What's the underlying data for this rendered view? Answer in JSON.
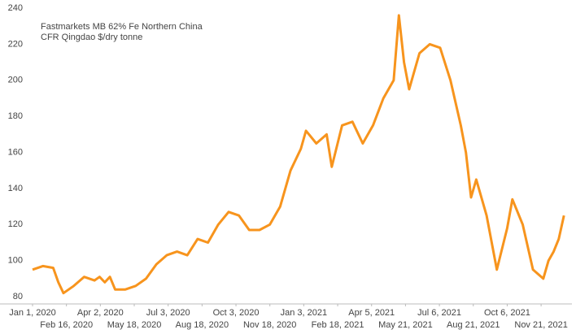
{
  "chart_data": {
    "type": "line",
    "title": "Fastmarkets MB 62% Fe Northern China",
    "subtitle": "CFR Qingdao $/dry tonne",
    "x": [
      "2020-01-01",
      "2020-01-15",
      "2020-01-29",
      "2020-02-05",
      "2020-02-12",
      "2020-02-26",
      "2020-03-11",
      "2020-03-25",
      "2020-04-01",
      "2020-04-08",
      "2020-04-15",
      "2020-04-22",
      "2020-05-06",
      "2020-05-20",
      "2020-06-03",
      "2020-06-17",
      "2020-07-01",
      "2020-07-15",
      "2020-07-29",
      "2020-08-12",
      "2020-08-26",
      "2020-09-09",
      "2020-09-23",
      "2020-10-07",
      "2020-10-21",
      "2020-11-04",
      "2020-11-18",
      "2020-12-02",
      "2020-12-16",
      "2020-12-30",
      "2021-01-06",
      "2021-01-20",
      "2021-02-03",
      "2021-02-10",
      "2021-02-24",
      "2021-03-10",
      "2021-03-24",
      "2021-04-07",
      "2021-04-21",
      "2021-05-05",
      "2021-05-12",
      "2021-05-19",
      "2021-05-26",
      "2021-06-09",
      "2021-06-23",
      "2021-07-07",
      "2021-07-21",
      "2021-08-04",
      "2021-08-11",
      "2021-08-18",
      "2021-08-25",
      "2021-09-08",
      "2021-09-22",
      "2021-10-06",
      "2021-10-13",
      "2021-10-27",
      "2021-11-10",
      "2021-11-24",
      "2021-12-01",
      "2021-12-08",
      "2021-12-15",
      "2021-12-22"
    ],
    "series": [
      {
        "name": "Fastmarkets MB 62% Fe Northern China",
        "color": "#f7941d",
        "values": [
          95,
          97,
          96,
          88,
          82,
          86,
          91,
          89,
          91,
          88,
          91,
          84,
          84,
          86,
          90,
          98,
          103,
          105,
          103,
          112,
          110,
          120,
          127,
          125,
          117,
          117,
          120,
          130,
          150,
          162,
          172,
          165,
          170,
          152,
          175,
          177,
          165,
          175,
          190,
          200,
          236,
          210,
          195,
          215,
          220,
          218,
          200,
          175,
          160,
          135,
          145,
          125,
          95,
          118,
          134,
          120,
          95,
          90,
          100,
          105,
          112,
          125
        ]
      }
    ],
    "xlim": [
      "2020-01-01",
      "2021-12-24"
    ],
    "xticks": [
      {
        "value": "2020-01-01",
        "label": "Jan 1, 2020"
      },
      {
        "value": "2020-02-16",
        "label": "Feb 16, 2020"
      },
      {
        "value": "2020-04-02",
        "label": "Apr 2, 2020"
      },
      {
        "value": "2020-05-18",
        "label": "May 18, 2020"
      },
      {
        "value": "2020-07-03",
        "label": "Jul 3, 2020"
      },
      {
        "value": "2020-08-18",
        "label": "Aug 18, 2020"
      },
      {
        "value": "2020-10-03",
        "label": "Oct 3, 2020"
      },
      {
        "value": "2020-11-18",
        "label": "Nov 18, 2020"
      },
      {
        "value": "2021-01-03",
        "label": "Jan 3, 2021"
      },
      {
        "value": "2021-02-18",
        "label": "Feb 18, 2021"
      },
      {
        "value": "2021-04-05",
        "label": "Apr 5, 2021"
      },
      {
        "value": "2021-05-21",
        "label": "May 21, 2021"
      },
      {
        "value": "2021-07-06",
        "label": "Jul 6, 2021"
      },
      {
        "value": "2021-08-21",
        "label": "Aug 21, 2021"
      },
      {
        "value": "2021-10-06",
        "label": "Oct 6, 2021"
      },
      {
        "value": "2021-11-21",
        "label": "Nov 21, 2021"
      }
    ],
    "ylim": [
      76,
      240
    ],
    "yticks": [
      80,
      100,
      120,
      140,
      160,
      180,
      200,
      220,
      240
    ],
    "grid": false
  }
}
